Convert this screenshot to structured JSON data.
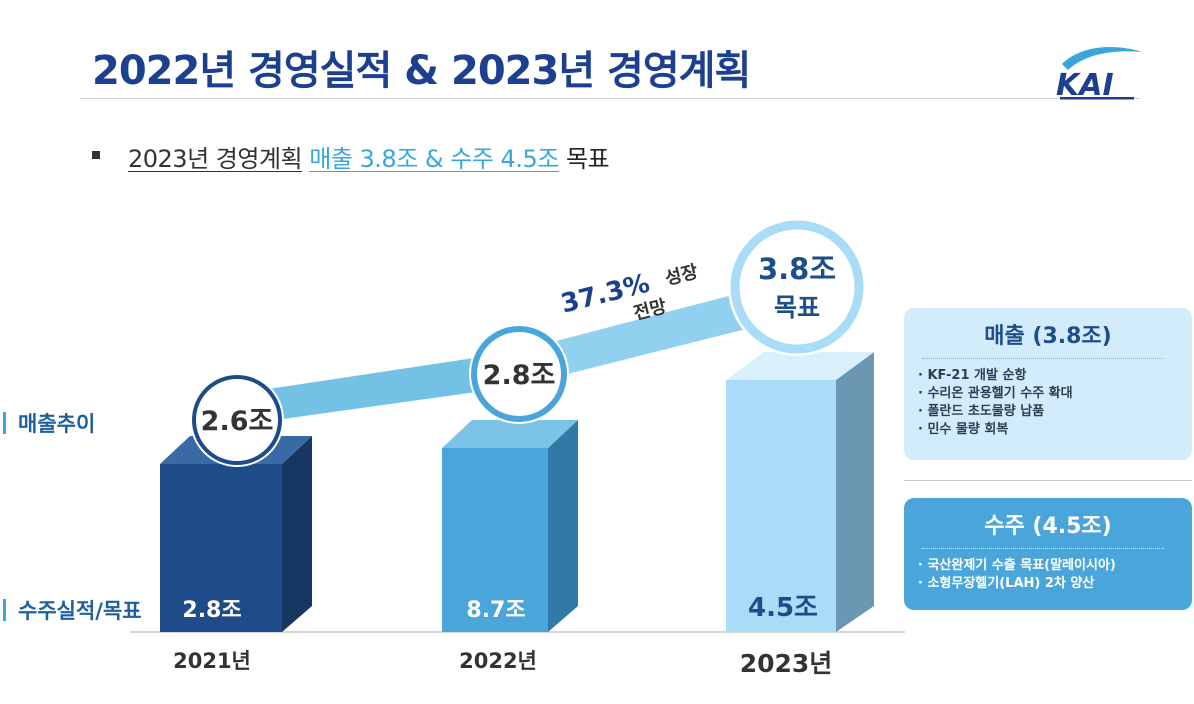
{
  "header": {
    "title": "2022년 경영실적 & 2023년 경영계획",
    "logo_text": "KAI"
  },
  "subtitle": {
    "part1": "2023년 경영계획",
    "part2": "매출 3.8조 & 수주 4.5조",
    "part3": "목표"
  },
  "row_labels": {
    "sales_trend": "매출추이",
    "orders": "수주실적/목표"
  },
  "growth": {
    "value": "37.3%",
    "label1": "성장",
    "label2": "전망"
  },
  "panels": {
    "sales": {
      "title": "매출 (3.8조)",
      "items": [
        "KF-21 개발 순항",
        "수리온 관용헬기 수주 확대",
        "폴란드 초도물량 납품",
        "민수 물량 회복"
      ]
    },
    "orders": {
      "title": "수주 (4.5조)",
      "items": [
        "국산완제기 수출 목표(말레이시아)",
        "소형무장헬기(LAH) 2차 양산"
      ]
    }
  },
  "colors": {
    "title": "#1d3f8f",
    "accent": "#3aa6dc",
    "bar_2021": "#1f4c89",
    "bar_2022": "#4aa6da",
    "bar_2023": "#a9dcf6"
  },
  "chart_data": {
    "type": "bar",
    "categories": [
      "2021년",
      "2022년",
      "2023년"
    ],
    "series": [
      {
        "name": "수주실적/목표",
        "values": [
          2.8,
          8.7,
          4.5
        ],
        "labels": [
          "2.8조",
          "8.7조",
          "4.5조"
        ]
      },
      {
        "name": "매출추이",
        "values": [
          2.6,
          2.8,
          3.8
        ],
        "labels": [
          "2.6조",
          "2.8조",
          "3.8조"
        ],
        "label_suffix": "목표",
        "type": "line"
      }
    ]
  }
}
